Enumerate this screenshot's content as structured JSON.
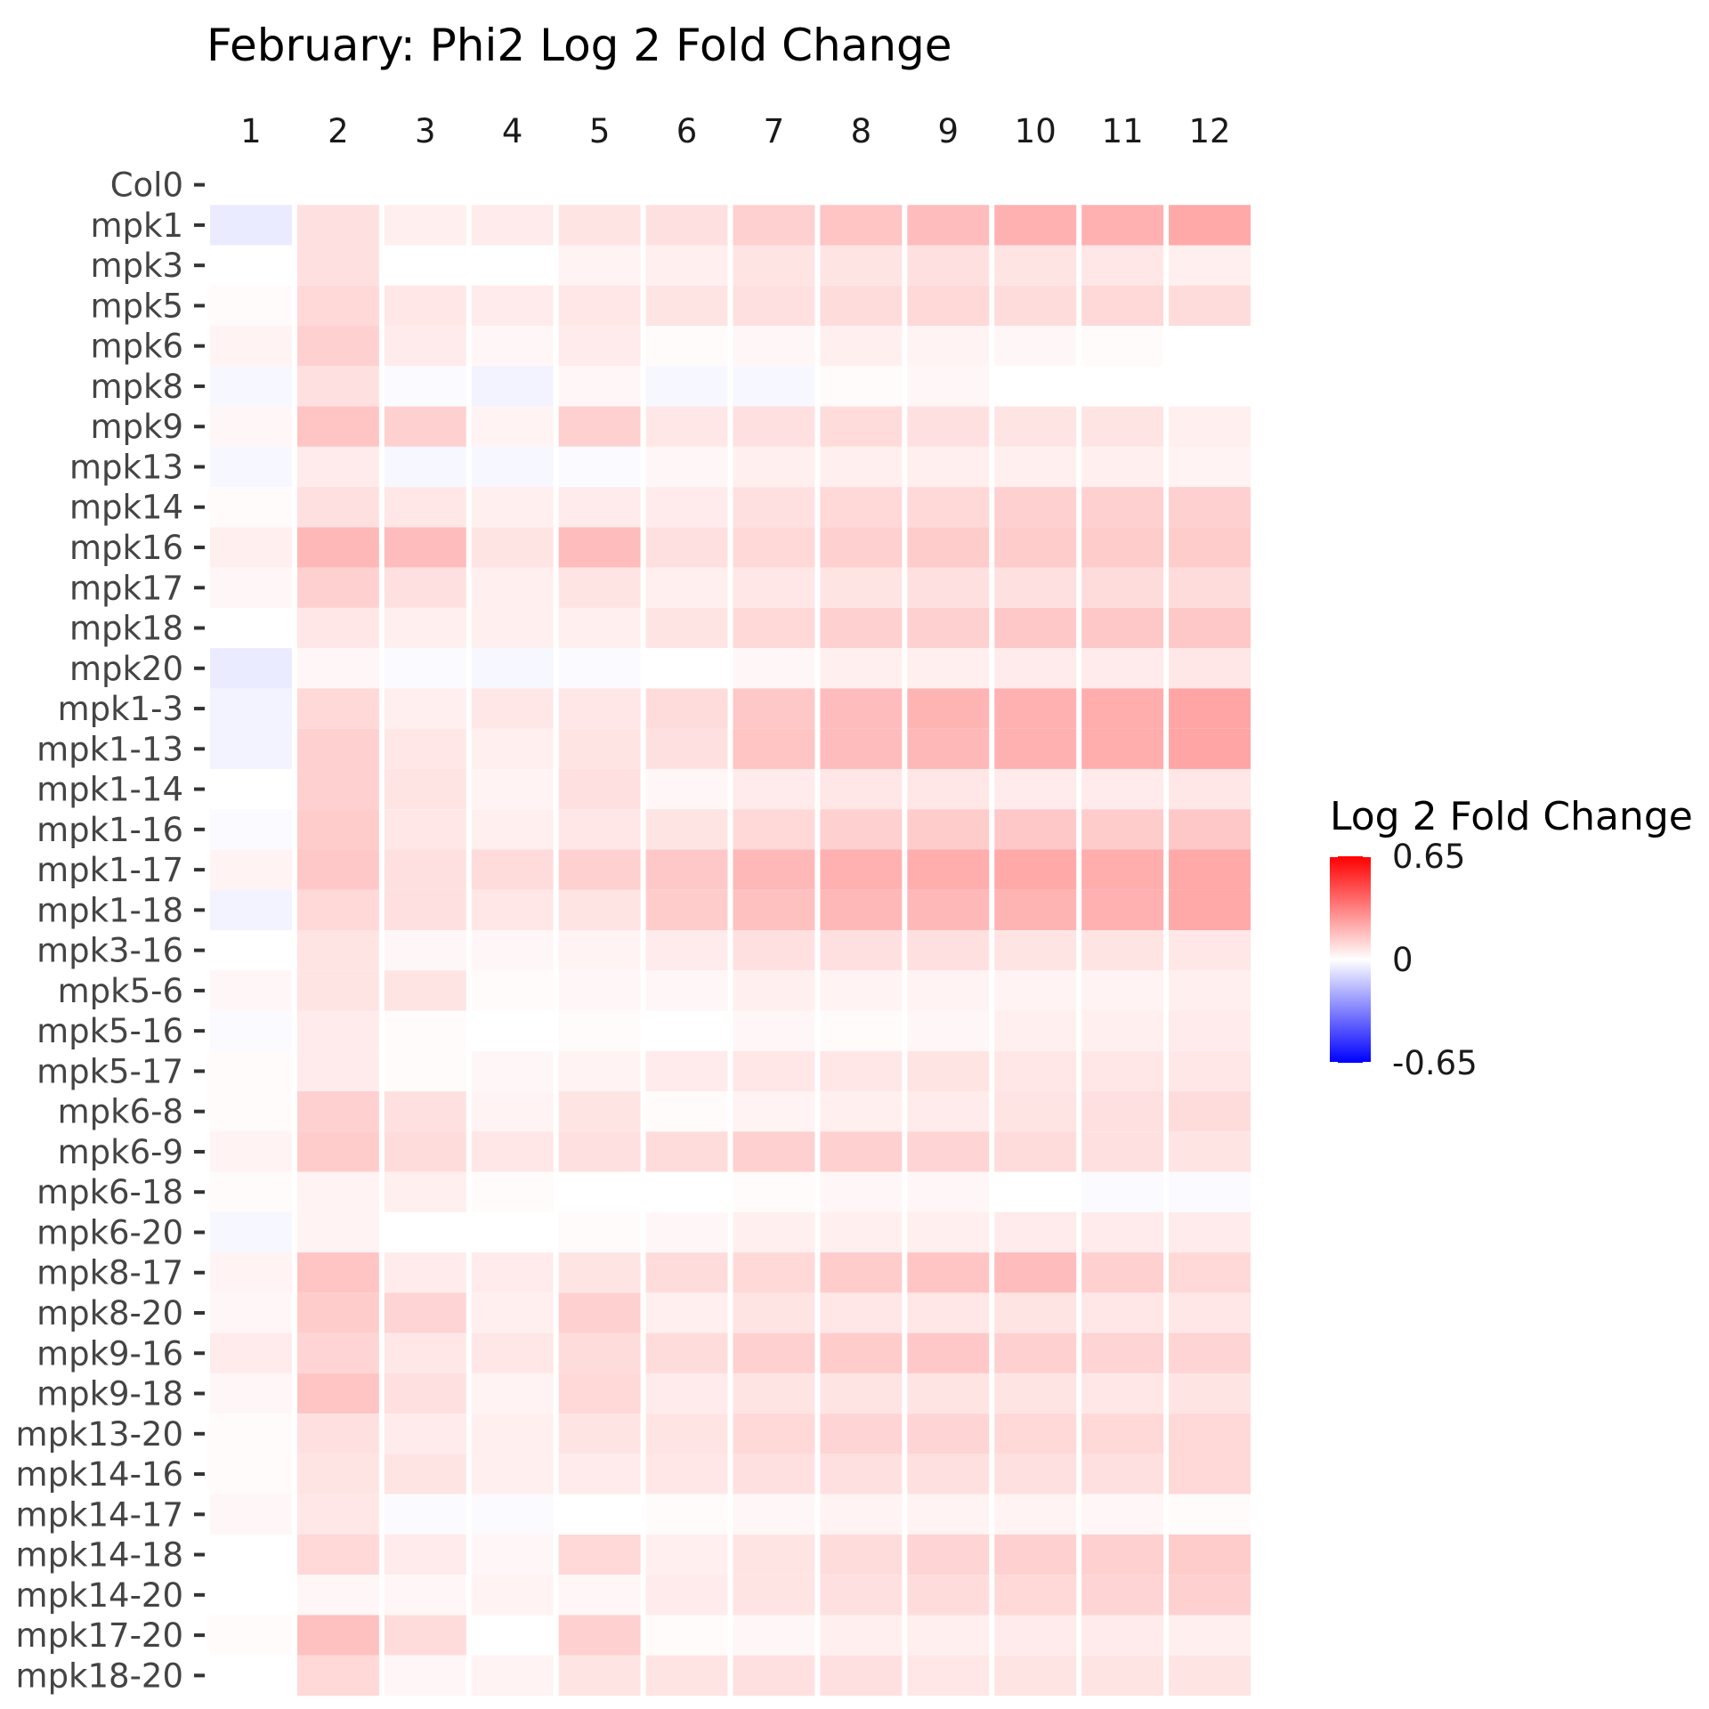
{
  "chart_data": {
    "type": "heatmap",
    "title": "February: Phi2 Log 2 Fold Change",
    "x": [
      "1",
      "2",
      "3",
      "4",
      "5",
      "6",
      "7",
      "8",
      "9",
      "10",
      "11",
      "12"
    ],
    "y": [
      "Col0",
      "mpk1",
      "mpk3",
      "mpk5",
      "mpk6",
      "mpk8",
      "mpk9",
      "mpk13",
      "mpk14",
      "mpk16",
      "mpk17",
      "mpk18",
      "mpk20",
      "mpk1-3",
      "mpk1-13",
      "mpk1-14",
      "mpk1-16",
      "mpk1-17",
      "mpk1-18",
      "mpk3-16",
      "mpk5-6",
      "mpk5-16",
      "mpk5-17",
      "mpk6-8",
      "mpk6-9",
      "mpk6-18",
      "mpk6-20",
      "mpk8-17",
      "mpk8-20",
      "mpk9-16",
      "mpk9-18",
      "mpk13-20",
      "mpk14-16",
      "mpk14-17",
      "mpk14-18",
      "mpk14-20",
      "mpk17-20",
      "mpk18-20"
    ],
    "values": [
      [
        null,
        null,
        null,
        null,
        null,
        null,
        null,
        null,
        null,
        null,
        null,
        null
      ],
      [
        -0.05,
        0.08,
        0.04,
        0.05,
        0.07,
        0.08,
        0.12,
        0.15,
        0.17,
        0.2,
        0.2,
        0.22
      ],
      [
        0,
        0.08,
        0,
        0,
        0.03,
        0.04,
        0.07,
        0.07,
        0.08,
        0.07,
        0.06,
        0.04
      ],
      [
        0.01,
        0.1,
        0.06,
        0.05,
        0.06,
        0.07,
        0.08,
        0.09,
        0.1,
        0.09,
        0.1,
        0.09
      ],
      [
        0.03,
        0.12,
        0.05,
        0.02,
        0.05,
        0.01,
        0.02,
        0.04,
        0.03,
        0.02,
        0.01,
        0
      ],
      [
        -0.02,
        0.08,
        -0.01,
        -0.03,
        0.02,
        -0.02,
        -0.02,
        0.01,
        0.02,
        0,
        0,
        0
      ],
      [
        0.02,
        0.15,
        0.12,
        0.03,
        0.12,
        0.06,
        0.08,
        0.09,
        0.08,
        0.07,
        0.07,
        0.04
      ],
      [
        -0.02,
        0.05,
        -0.02,
        -0.02,
        -0.01,
        0.02,
        0.04,
        0.04,
        0.04,
        0.04,
        0.04,
        0.03
      ],
      [
        0.01,
        0.08,
        0.06,
        0.04,
        0.05,
        0.05,
        0.08,
        0.1,
        0.1,
        0.12,
        0.12,
        0.12
      ],
      [
        0.04,
        0.18,
        0.17,
        0.07,
        0.17,
        0.08,
        0.1,
        0.12,
        0.13,
        0.13,
        0.13,
        0.13
      ],
      [
        0.02,
        0.12,
        0.08,
        0.04,
        0.07,
        0.04,
        0.06,
        0.07,
        0.08,
        0.08,
        0.09,
        0.09
      ],
      [
        0,
        0.06,
        0.04,
        0.04,
        0.04,
        0.07,
        0.1,
        0.12,
        0.12,
        0.14,
        0.14,
        0.14
      ],
      [
        -0.05,
        0.02,
        -0.01,
        -0.02,
        -0.01,
        0,
        0.02,
        0.04,
        0.04,
        0.05,
        0.05,
        0.06
      ],
      [
        -0.03,
        0.1,
        0.04,
        0.06,
        0.06,
        0.09,
        0.14,
        0.17,
        0.19,
        0.2,
        0.21,
        0.23
      ],
      [
        -0.03,
        0.12,
        0.06,
        0.04,
        0.07,
        0.08,
        0.15,
        0.17,
        0.18,
        0.2,
        0.21,
        0.23
      ],
      [
        0,
        0.12,
        0.07,
        0.03,
        0.08,
        0.02,
        0.05,
        0.06,
        0.06,
        0.05,
        0.05,
        0.06
      ],
      [
        -0.01,
        0.13,
        0.06,
        0.04,
        0.06,
        0.07,
        0.1,
        0.12,
        0.13,
        0.14,
        0.13,
        0.14
      ],
      [
        0.03,
        0.14,
        0.08,
        0.09,
        0.12,
        0.14,
        0.18,
        0.2,
        0.21,
        0.22,
        0.21,
        0.22
      ],
      [
        -0.03,
        0.1,
        0.08,
        0.06,
        0.07,
        0.13,
        0.16,
        0.18,
        0.18,
        0.19,
        0.2,
        0.22
      ],
      [
        0,
        0.07,
        0.02,
        0.02,
        0.03,
        0.05,
        0.08,
        0.08,
        0.08,
        0.07,
        0.07,
        0.06
      ],
      [
        0.02,
        0.07,
        0.07,
        0.01,
        0.02,
        0.02,
        0.04,
        0.03,
        0.03,
        0.03,
        0.03,
        0.04
      ],
      [
        -0.01,
        0.05,
        0.01,
        0,
        0.01,
        0,
        0.02,
        0.01,
        0.02,
        0.04,
        0.04,
        0.05
      ],
      [
        0.01,
        0.05,
        0.01,
        0.02,
        0.03,
        0.05,
        0.06,
        0.06,
        0.07,
        0.06,
        0.06,
        0.06
      ],
      [
        0.01,
        0.12,
        0.08,
        0.03,
        0.07,
        0.01,
        0.03,
        0.04,
        0.05,
        0.07,
        0.08,
        0.09
      ],
      [
        0.03,
        0.13,
        0.09,
        0.06,
        0.08,
        0.09,
        0.12,
        0.12,
        0.11,
        0.09,
        0.08,
        0.07
      ],
      [
        0.01,
        0.03,
        0.04,
        0.01,
        0,
        0,
        0.01,
        0.02,
        0.02,
        0,
        -0.01,
        -0.01
      ],
      [
        -0.02,
        0.03,
        0,
        0,
        0.01,
        0.02,
        0.04,
        0.04,
        0.04,
        0.05,
        0.05,
        0.05
      ],
      [
        0.03,
        0.15,
        0.05,
        0.05,
        0.07,
        0.09,
        0.1,
        0.13,
        0.15,
        0.17,
        0.12,
        0.1
      ],
      [
        0.02,
        0.13,
        0.11,
        0.04,
        0.12,
        0.04,
        0.07,
        0.06,
        0.06,
        0.07,
        0.06,
        0.06
      ],
      [
        0.05,
        0.11,
        0.06,
        0.06,
        0.09,
        0.09,
        0.12,
        0.13,
        0.14,
        0.12,
        0.11,
        0.11
      ],
      [
        0.02,
        0.15,
        0.08,
        0.03,
        0.1,
        0.05,
        0.07,
        0.07,
        0.07,
        0.07,
        0.06,
        0.07
      ],
      [
        0.01,
        0.08,
        0.05,
        0.04,
        0.07,
        0.07,
        0.1,
        0.11,
        0.11,
        0.1,
        0.1,
        0.1
      ],
      [
        0.01,
        0.07,
        0.07,
        0.04,
        0.05,
        0.06,
        0.08,
        0.08,
        0.08,
        0.08,
        0.08,
        0.1
      ],
      [
        0.02,
        0.06,
        -0.01,
        -0.01,
        0,
        0.01,
        0.02,
        0.03,
        0.03,
        0.03,
        0.02,
        0.01
      ],
      [
        0,
        0.1,
        0.05,
        0.02,
        0.1,
        0.04,
        0.07,
        0.09,
        0.11,
        0.12,
        0.12,
        0.13
      ],
      [
        0,
        0.02,
        0.02,
        0.03,
        0.02,
        0.05,
        0.07,
        0.08,
        0.09,
        0.1,
        0.11,
        0.12
      ],
      [
        0.01,
        0.16,
        0.09,
        0,
        0.12,
        0.01,
        0.02,
        0.04,
        0.04,
        0.05,
        0.05,
        0.04
      ],
      [
        0,
        0.1,
        0.02,
        0.03,
        0.07,
        0.07,
        0.08,
        0.08,
        0.06,
        0.07,
        0.07,
        0.07
      ]
    ],
    "colorscale": {
      "low": "#0000ff",
      "mid": "#ffffff",
      "high": "#ff0000"
    },
    "zlim": [
      -0.65,
      0.65
    ],
    "legend": {
      "title": "Log 2 Fold Change",
      "ticks": [
        "0.65",
        "0",
        "-0.65"
      ],
      "placement": "right"
    },
    "x_axis_position": "top",
    "grid": false
  }
}
